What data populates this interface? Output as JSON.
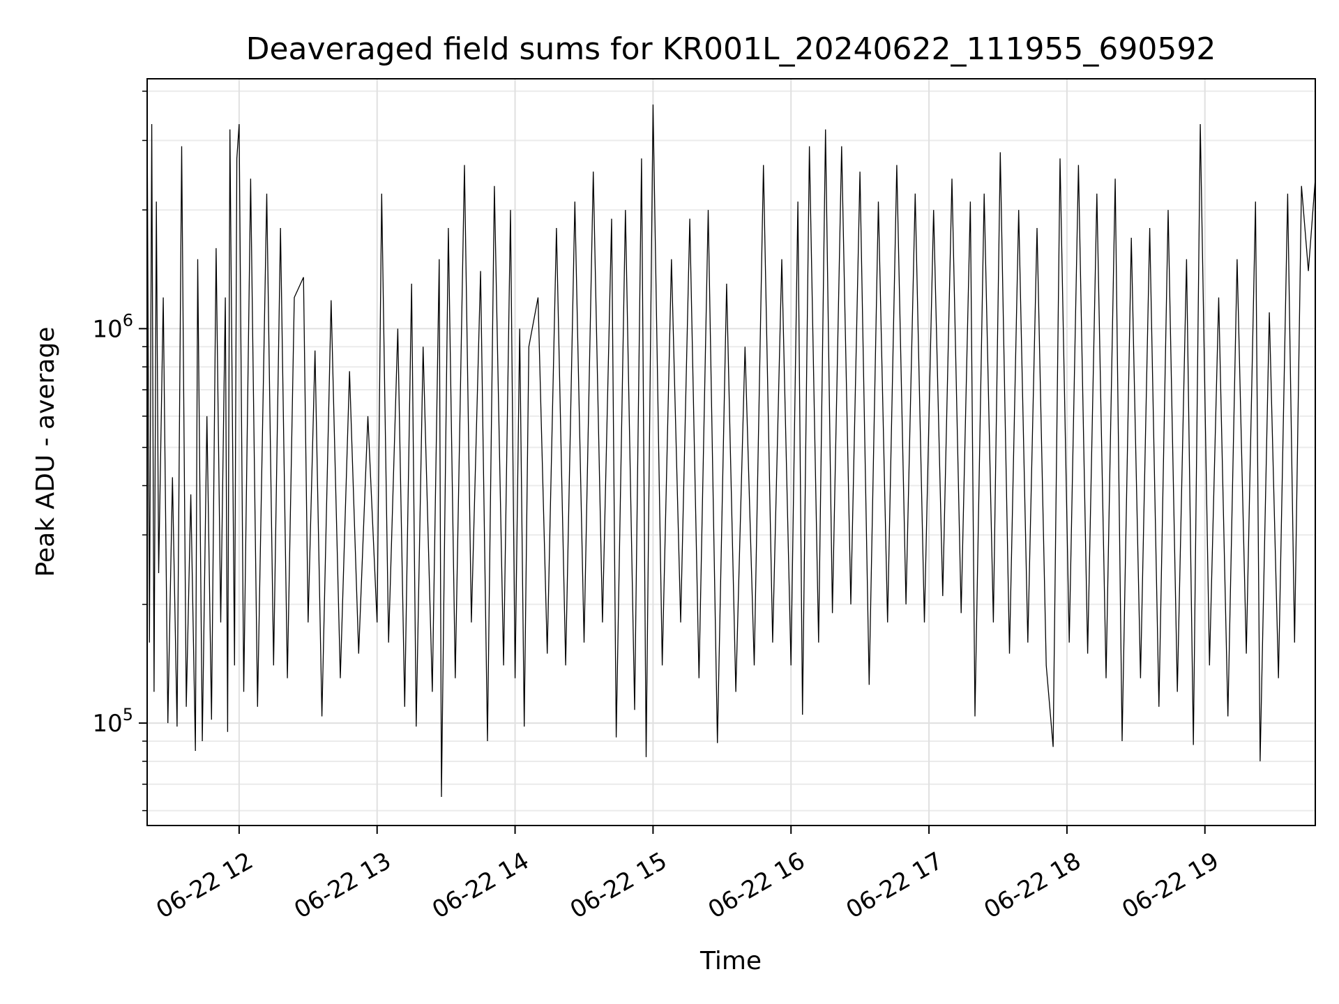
{
  "chart_data": {
    "type": "line",
    "title": "Deaveraged field sums for KR001L_20240622_111955_690592",
    "xlabel": "Time",
    "ylabel": "Peak ADU - average",
    "yscale": "log",
    "ylim": [
      55000,
      4300000
    ],
    "xlim": [
      "06-22 11:20",
      "06-22 19:48"
    ],
    "grid": true,
    "x_ticks": [
      {
        "t": "06-22 12:00",
        "label": "06-22 12"
      },
      {
        "t": "06-22 13:00",
        "label": "06-22 13"
      },
      {
        "t": "06-22 14:00",
        "label": "06-22 14"
      },
      {
        "t": "06-22 15:00",
        "label": "06-22 15"
      },
      {
        "t": "06-22 16:00",
        "label": "06-22 16"
      },
      {
        "t": "06-22 17:00",
        "label": "06-22 17"
      },
      {
        "t": "06-22 18:00",
        "label": "06-22 18"
      },
      {
        "t": "06-22 19:00",
        "label": "06-22 19"
      }
    ],
    "y_ticks": [
      {
        "v": 100000,
        "base": "10",
        "exp": "5"
      },
      {
        "v": 1000000,
        "base": "10",
        "exp": "6"
      }
    ],
    "series": [
      {
        "color": "#000000",
        "points": [
          [
            "06-22 11:20",
            350000
          ],
          [
            "06-22 11:20",
            3600000
          ],
          [
            "06-22 11:21",
            160000
          ],
          [
            "06-22 11:22",
            3300000
          ],
          [
            "06-22 11:23",
            120000
          ],
          [
            "06-22 11:24",
            2100000
          ],
          [
            "06-22 11:25",
            240000
          ],
          [
            "06-22 11:27",
            1200000
          ],
          [
            "06-22 11:29",
            100000
          ],
          [
            "06-22 11:31",
            420000
          ],
          [
            "06-22 11:33",
            98000
          ],
          [
            "06-22 11:35",
            2900000
          ],
          [
            "06-22 11:37",
            110000
          ],
          [
            "06-22 11:39",
            380000
          ],
          [
            "06-22 11:41",
            85000
          ],
          [
            "06-22 11:42",
            1500000
          ],
          [
            "06-22 11:44",
            90000
          ],
          [
            "06-22 11:46",
            600000
          ],
          [
            "06-22 11:48",
            102000
          ],
          [
            "06-22 11:50",
            1600000
          ],
          [
            "06-22 11:52",
            180000
          ],
          [
            "06-22 11:54",
            1200000
          ],
          [
            "06-22 11:55",
            95000
          ],
          [
            "06-22 11:56",
            3200000
          ],
          [
            "06-22 11:58",
            140000
          ],
          [
            "06-22 11:59",
            2700000
          ],
          [
            "06-22 12:00",
            3300000
          ],
          [
            "06-22 12:02",
            120000
          ],
          [
            "06-22 12:05",
            2400000
          ],
          [
            "06-22 12:08",
            110000
          ],
          [
            "06-22 12:12",
            2200000
          ],
          [
            "06-22 12:15",
            140000
          ],
          [
            "06-22 12:18",
            1800000
          ],
          [
            "06-22 12:21",
            130000
          ],
          [
            "06-22 12:24",
            1200000
          ],
          [
            "06-22 12:28",
            1350000
          ],
          [
            "06-22 12:30",
            180000
          ],
          [
            "06-22 12:33",
            880000
          ],
          [
            "06-22 12:36",
            104000
          ],
          [
            "06-22 12:40",
            1180000
          ],
          [
            "06-22 12:44",
            130000
          ],
          [
            "06-22 12:48",
            780000
          ],
          [
            "06-22 12:52",
            150000
          ],
          [
            "06-22 12:56",
            600000
          ],
          [
            "06-22 13:00",
            180000
          ],
          [
            "06-22 13:02",
            2200000
          ],
          [
            "06-22 13:05",
            160000
          ],
          [
            "06-22 13:09",
            1000000
          ],
          [
            "06-22 13:12",
            110000
          ],
          [
            "06-22 13:15",
            1300000
          ],
          [
            "06-22 13:17",
            98000
          ],
          [
            "06-22 13:20",
            900000
          ],
          [
            "06-22 13:24",
            120000
          ],
          [
            "06-22 13:27",
            1500000
          ],
          [
            "06-22 13:28",
            65000
          ],
          [
            "06-22 13:31",
            1800000
          ],
          [
            "06-22 13:34",
            130000
          ],
          [
            "06-22 13:38",
            2600000
          ],
          [
            "06-22 13:41",
            180000
          ],
          [
            "06-22 13:45",
            1400000
          ],
          [
            "06-22 13:48",
            90000
          ],
          [
            "06-22 13:51",
            2300000
          ],
          [
            "06-22 13:55",
            140000
          ],
          [
            "06-22 13:58",
            2000000
          ],
          [
            "06-22 14:00",
            130000
          ],
          [
            "06-22 14:02",
            1000000
          ],
          [
            "06-22 14:04",
            98000
          ],
          [
            "06-22 14:06",
            900000
          ],
          [
            "06-22 14:10",
            1200000
          ],
          [
            "06-22 14:14",
            150000
          ],
          [
            "06-22 14:18",
            1800000
          ],
          [
            "06-22 14:22",
            140000
          ],
          [
            "06-22 14:26",
            2100000
          ],
          [
            "06-22 14:30",
            160000
          ],
          [
            "06-22 14:34",
            2500000
          ],
          [
            "06-22 14:38",
            180000
          ],
          [
            "06-22 14:42",
            1900000
          ],
          [
            "06-22 14:44",
            92000
          ],
          [
            "06-22 14:48",
            2000000
          ],
          [
            "06-22 14:52",
            108000
          ],
          [
            "06-22 14:55",
            2700000
          ],
          [
            "06-22 14:57",
            82000
          ],
          [
            "06-22 15:00",
            3700000
          ],
          [
            "06-22 15:04",
            140000
          ],
          [
            "06-22 15:08",
            1500000
          ],
          [
            "06-22 15:12",
            180000
          ],
          [
            "06-22 15:16",
            1900000
          ],
          [
            "06-22 15:20",
            130000
          ],
          [
            "06-22 15:24",
            2000000
          ],
          [
            "06-22 15:28",
            89000
          ],
          [
            "06-22 15:32",
            1300000
          ],
          [
            "06-22 15:36",
            120000
          ],
          [
            "06-22 15:40",
            900000
          ],
          [
            "06-22 15:44",
            140000
          ],
          [
            "06-22 15:48",
            2600000
          ],
          [
            "06-22 15:52",
            160000
          ],
          [
            "06-22 15:56",
            1500000
          ],
          [
            "06-22 16:00",
            140000
          ],
          [
            "06-22 16:03",
            2100000
          ],
          [
            "06-22 16:05",
            105000
          ],
          [
            "06-22 16:08",
            2900000
          ],
          [
            "06-22 16:12",
            160000
          ],
          [
            "06-22 16:15",
            3200000
          ],
          [
            "06-22 16:18",
            190000
          ],
          [
            "06-22 16:22",
            2900000
          ],
          [
            "06-22 16:26",
            200000
          ],
          [
            "06-22 16:30",
            2500000
          ],
          [
            "06-22 16:34",
            125000
          ],
          [
            "06-22 16:38",
            2100000
          ],
          [
            "06-22 16:42",
            180000
          ],
          [
            "06-22 16:46",
            2600000
          ],
          [
            "06-22 16:50",
            200000
          ],
          [
            "06-22 16:54",
            2200000
          ],
          [
            "06-22 16:58",
            180000
          ],
          [
            "06-22 17:02",
            2000000
          ],
          [
            "06-22 17:06",
            210000
          ],
          [
            "06-22 17:10",
            2400000
          ],
          [
            "06-22 17:14",
            190000
          ],
          [
            "06-22 17:18",
            2100000
          ],
          [
            "06-22 17:20",
            104000
          ],
          [
            "06-22 17:24",
            2200000
          ],
          [
            "06-22 17:28",
            180000
          ],
          [
            "06-22 17:31",
            2800000
          ],
          [
            "06-22 17:35",
            150000
          ],
          [
            "06-22 17:39",
            2000000
          ],
          [
            "06-22 17:43",
            160000
          ],
          [
            "06-22 17:47",
            1800000
          ],
          [
            "06-22 17:51",
            140000
          ],
          [
            "06-22 17:54",
            87000
          ],
          [
            "06-22 17:57",
            2700000
          ],
          [
            "06-22 18:01",
            160000
          ],
          [
            "06-22 18:05",
            2600000
          ],
          [
            "06-22 18:09",
            150000
          ],
          [
            "06-22 18:13",
            2200000
          ],
          [
            "06-22 18:17",
            130000
          ],
          [
            "06-22 18:21",
            2400000
          ],
          [
            "06-22 18:24",
            90000
          ],
          [
            "06-22 18:28",
            1700000
          ],
          [
            "06-22 18:32",
            130000
          ],
          [
            "06-22 18:36",
            1800000
          ],
          [
            "06-22 18:40",
            110000
          ],
          [
            "06-22 18:44",
            2000000
          ],
          [
            "06-22 18:48",
            120000
          ],
          [
            "06-22 18:52",
            1500000
          ],
          [
            "06-22 18:55",
            88000
          ],
          [
            "06-22 18:58",
            3300000
          ],
          [
            "06-22 19:02",
            140000
          ],
          [
            "06-22 19:06",
            1200000
          ],
          [
            "06-22 19:10",
            104000
          ],
          [
            "06-22 19:14",
            1500000
          ],
          [
            "06-22 19:18",
            150000
          ],
          [
            "06-22 19:22",
            2100000
          ],
          [
            "06-22 19:24",
            80000
          ],
          [
            "06-22 19:28",
            1100000
          ],
          [
            "06-22 19:32",
            130000
          ],
          [
            "06-22 19:36",
            2200000
          ],
          [
            "06-22 19:39",
            160000
          ],
          [
            "06-22 19:42",
            2300000
          ],
          [
            "06-22 19:45",
            1400000
          ],
          [
            "06-22 19:48",
            2400000
          ]
        ]
      }
    ]
  }
}
